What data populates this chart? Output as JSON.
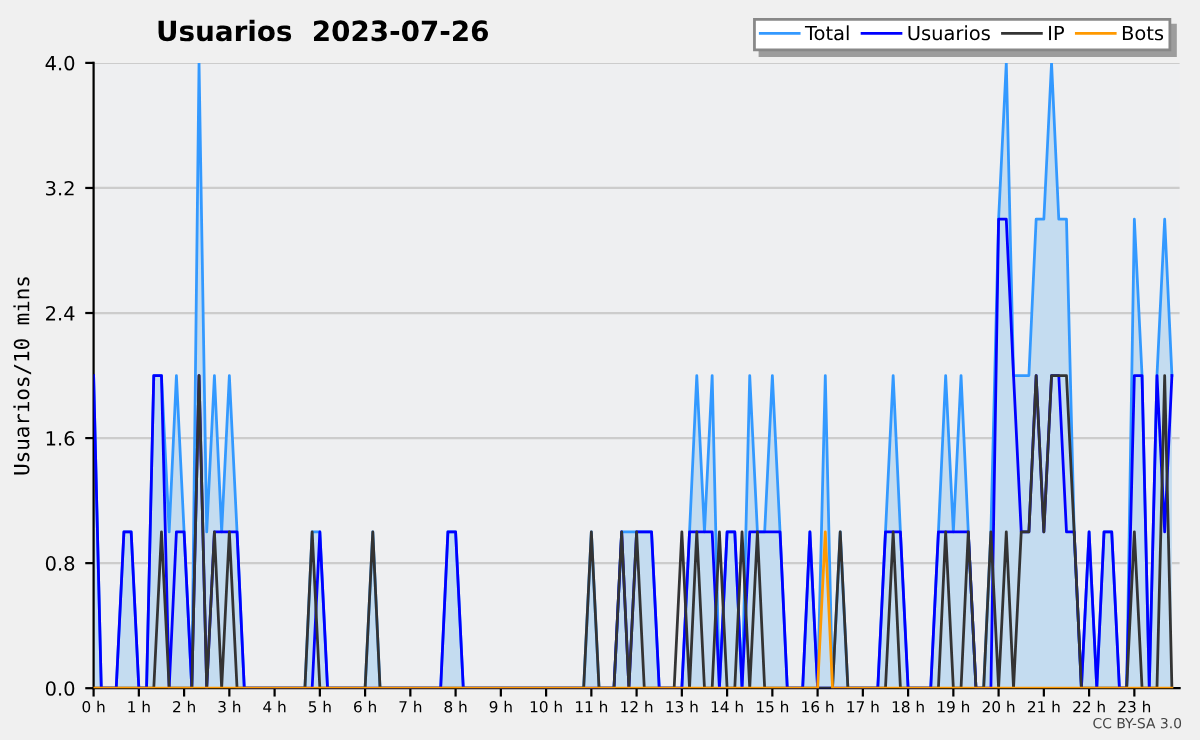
{
  "chart_data": {
    "type": "line",
    "title": "Usuarios  2023-07-26",
    "ylabel": "Usuarios/10 mins",
    "annotations": [
      "CC BY-SA 3.0"
    ],
    "x": [
      0,
      0.17,
      0.33,
      0.5,
      0.67,
      0.83,
      1,
      1.17,
      1.33,
      1.5,
      1.67,
      1.83,
      2,
      2.17,
      2.33,
      2.5,
      2.67,
      2.83,
      3,
      3.17,
      3.33,
      3.5,
      3.67,
      3.83,
      4,
      4.17,
      4.33,
      4.5,
      4.67,
      4.83,
      5,
      5.17,
      5.33,
      5.5,
      5.67,
      5.83,
      6,
      6.17,
      6.33,
      6.5,
      6.67,
      6.83,
      7,
      7.17,
      7.33,
      7.5,
      7.67,
      7.83,
      8,
      8.17,
      8.33,
      8.5,
      8.67,
      8.83,
      9,
      9.17,
      9.33,
      9.5,
      9.67,
      9.83,
      10,
      10.17,
      10.33,
      10.5,
      10.67,
      10.83,
      11,
      11.17,
      11.33,
      11.5,
      11.67,
      11.83,
      12,
      12.17,
      12.33,
      12.5,
      12.67,
      12.83,
      13,
      13.17,
      13.33,
      13.5,
      13.67,
      13.83,
      14,
      14.17,
      14.33,
      14.5,
      14.67,
      14.83,
      15,
      15.17,
      15.33,
      15.5,
      15.67,
      15.83,
      16,
      16.17,
      16.33,
      16.5,
      16.67,
      16.83,
      17,
      17.17,
      17.33,
      17.5,
      17.67,
      17.83,
      18,
      18.17,
      18.33,
      18.5,
      18.67,
      18.83,
      19,
      19.17,
      19.33,
      19.5,
      19.67,
      19.83,
      20,
      20.17,
      20.33,
      20.5,
      20.67,
      20.83,
      21,
      21.17,
      21.33,
      21.5,
      21.67,
      21.83,
      22,
      22.17,
      22.33,
      22.5,
      22.67,
      22.83,
      23,
      23.17,
      23.33,
      23.5,
      23.67,
      23.83
    ],
    "series": [
      {
        "name": "Total",
        "type": "area",
        "color": "#3399ff",
        "values": [
          2,
          0,
          0,
          0,
          1,
          1,
          0,
          0,
          2,
          2,
          1,
          2,
          1,
          0,
          4,
          1,
          2,
          1,
          2,
          1,
          0,
          0,
          0,
          0,
          0,
          0,
          0,
          0,
          0,
          1,
          1,
          0,
          0,
          0,
          0,
          0,
          0,
          1,
          0,
          0,
          0,
          0,
          0,
          0,
          0,
          0,
          0,
          1,
          1,
          0,
          0,
          0,
          0,
          0,
          0,
          0,
          0,
          0,
          0,
          0,
          0,
          0,
          0,
          0,
          0,
          0,
          1,
          0,
          0,
          0,
          1,
          1,
          1,
          1,
          1,
          0,
          0,
          0,
          0,
          1,
          2,
          1,
          2,
          0,
          1,
          1,
          0,
          2,
          1,
          1,
          2,
          1,
          0,
          0,
          0,
          1,
          0,
          2,
          0,
          1,
          0,
          0,
          0,
          0,
          0,
          1,
          2,
          1,
          0,
          0,
          0,
          0,
          1,
          2,
          1,
          2,
          1,
          0,
          0,
          1,
          3,
          4,
          2,
          2,
          2,
          3,
          3,
          4,
          3,
          3,
          1,
          0,
          1,
          0,
          1,
          1,
          0,
          0,
          3,
          2,
          0,
          2,
          3,
          2
        ]
      },
      {
        "name": "Usuarios",
        "color": "#0000ff",
        "values": [
          2,
          0,
          0,
          0,
          1,
          1,
          0,
          0,
          2,
          2,
          0,
          1,
          1,
          0,
          2,
          0,
          1,
          1,
          1,
          1,
          0,
          0,
          0,
          0,
          0,
          0,
          0,
          0,
          0,
          0,
          1,
          0,
          0,
          0,
          0,
          0,
          0,
          0,
          0,
          0,
          0,
          0,
          0,
          0,
          0,
          0,
          0,
          1,
          1,
          0,
          0,
          0,
          0,
          0,
          0,
          0,
          0,
          0,
          0,
          0,
          0,
          0,
          0,
          0,
          0,
          0,
          0,
          0,
          0,
          0,
          1,
          0,
          1,
          1,
          1,
          0,
          0,
          0,
          0,
          1,
          1,
          1,
          1,
          0,
          1,
          1,
          0,
          1,
          1,
          1,
          1,
          1,
          0,
          0,
          0,
          1,
          0,
          0,
          0,
          0,
          0,
          0,
          0,
          0,
          0,
          1,
          1,
          1,
          0,
          0,
          0,
          0,
          1,
          1,
          1,
          1,
          1,
          0,
          0,
          0,
          3,
          3,
          2,
          1,
          1,
          2,
          1,
          2,
          2,
          1,
          1,
          0,
          1,
          0,
          1,
          1,
          0,
          0,
          2,
          2,
          0,
          2,
          1,
          2
        ]
      },
      {
        "name": "IP",
        "color": "#333333",
        "values": [
          0,
          0,
          0,
          0,
          0,
          0,
          0,
          0,
          0,
          1,
          0,
          0,
          0,
          0,
          2,
          0,
          1,
          0,
          1,
          0,
          0,
          0,
          0,
          0,
          0,
          0,
          0,
          0,
          0,
          1,
          0,
          0,
          0,
          0,
          0,
          0,
          0,
          1,
          0,
          0,
          0,
          0,
          0,
          0,
          0,
          0,
          0,
          0,
          0,
          0,
          0,
          0,
          0,
          0,
          0,
          0,
          0,
          0,
          0,
          0,
          0,
          0,
          0,
          0,
          0,
          0,
          1,
          0,
          0,
          0,
          1,
          0,
          1,
          0,
          0,
          0,
          0,
          0,
          1,
          0,
          1,
          0,
          0,
          1,
          0,
          0,
          1,
          0,
          1,
          0,
          0,
          0,
          0,
          0,
          0,
          0,
          0,
          0,
          0,
          1,
          0,
          0,
          0,
          0,
          0,
          0,
          1,
          0,
          0,
          0,
          0,
          0,
          0,
          1,
          0,
          0,
          1,
          0,
          0,
          1,
          0,
          1,
          0,
          1,
          1,
          2,
          1,
          2,
          2,
          2,
          1,
          0,
          0,
          0,
          0,
          0,
          0,
          0,
          1,
          0,
          0,
          0,
          2,
          0
        ]
      },
      {
        "name": "Bots",
        "color": "#ff9900",
        "values": [
          0,
          0,
          0,
          0,
          0,
          0,
          0,
          0,
          0,
          0,
          0,
          0,
          0,
          0,
          0,
          0,
          0,
          0,
          0,
          0,
          0,
          0,
          0,
          0,
          0,
          0,
          0,
          0,
          0,
          0,
          0,
          0,
          0,
          0,
          0,
          0,
          0,
          0,
          0,
          0,
          0,
          0,
          0,
          0,
          0,
          0,
          0,
          0,
          0,
          0,
          0,
          0,
          0,
          0,
          0,
          0,
          0,
          0,
          0,
          0,
          0,
          0,
          0,
          0,
          0,
          0,
          0,
          0,
          0,
          0,
          0,
          0,
          0,
          0,
          0,
          0,
          0,
          0,
          0,
          0,
          0,
          0,
          0,
          0,
          0,
          0,
          0,
          0,
          0,
          0,
          0,
          0,
          0,
          0,
          0,
          0,
          0,
          1,
          0,
          0,
          0,
          0,
          0,
          0,
          0,
          0,
          0,
          0,
          0,
          0,
          0,
          0,
          0,
          0,
          0,
          0,
          0,
          0,
          0,
          0,
          0,
          0,
          0,
          0,
          0,
          0,
          0,
          0,
          0,
          0,
          0,
          0,
          0,
          0,
          0,
          0,
          0,
          0,
          0,
          0,
          0,
          0,
          0,
          0
        ]
      }
    ],
    "xlim": [
      0,
      24
    ],
    "xticks": [
      {
        "value": 0,
        "label": "0 h"
      },
      {
        "value": 1,
        "label": "1 h"
      },
      {
        "value": 2,
        "label": "2 h"
      },
      {
        "value": 3,
        "label": "3 h"
      },
      {
        "value": 4,
        "label": "4 h"
      },
      {
        "value": 5,
        "label": "5 h"
      },
      {
        "value": 6,
        "label": "6 h"
      },
      {
        "value": 7,
        "label": "7 h"
      },
      {
        "value": 8,
        "label": "8 h"
      },
      {
        "value": 9,
        "label": "9 h"
      },
      {
        "value": 10,
        "label": "10 h"
      },
      {
        "value": 11,
        "label": "11 h"
      },
      {
        "value": 12,
        "label": "12 h"
      },
      {
        "value": 13,
        "label": "13 h"
      },
      {
        "value": 14,
        "label": "14 h"
      },
      {
        "value": 15,
        "label": "15 h"
      },
      {
        "value": 16,
        "label": "16 h"
      },
      {
        "value": 17,
        "label": "17 h"
      },
      {
        "value": 18,
        "label": "18 h"
      },
      {
        "value": 19,
        "label": "19 h"
      },
      {
        "value": 20,
        "label": "20 h"
      },
      {
        "value": 21,
        "label": "21 h"
      },
      {
        "value": 22,
        "label": "22 h"
      },
      {
        "value": 23,
        "label": "23 h"
      }
    ],
    "ylim": [
      0,
      4
    ],
    "yticks": [
      {
        "value": 0,
        "label": "0.0"
      },
      {
        "value": 0.8,
        "label": "0.8"
      },
      {
        "value": 1.6,
        "label": "1.6"
      },
      {
        "value": 2.4,
        "label": "2.4"
      },
      {
        "value": 3.2,
        "label": "3.2"
      },
      {
        "value": 4,
        "label": "4.0"
      }
    ],
    "grid": "y",
    "legend": "top right",
    "marker": "none",
    "line_style": "solid"
  }
}
